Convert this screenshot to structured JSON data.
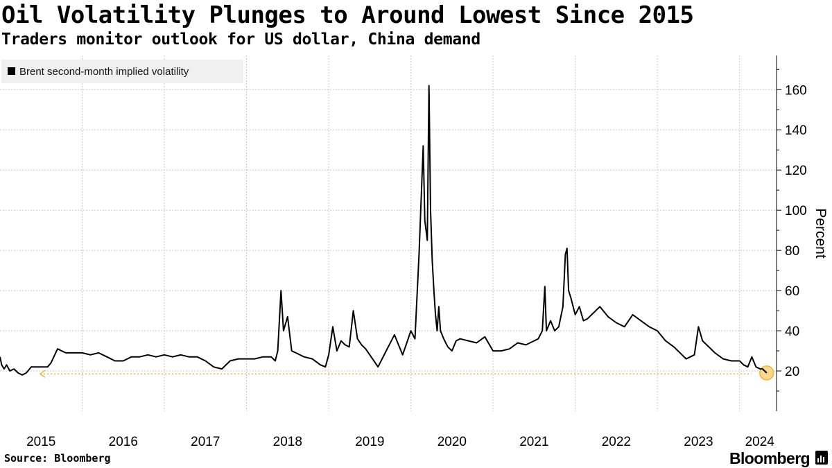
{
  "header": {
    "title": "Oil Volatility Plunges to Around Lowest Since 2015",
    "subtitle": "Traders monitor outlook for US dollar, China demand"
  },
  "footer": {
    "source": "Source: Bloomberg",
    "brand": "Bloomberg"
  },
  "colors": {
    "line": "#000000",
    "grid": "#c8c8c8",
    "highlight": "#f2b233",
    "highlight_fill": "#f9d98e",
    "legend_bg": "#f0f0f0"
  },
  "chart_data": {
    "type": "line",
    "title": "Oil Volatility Plunges to Around Lowest Since 2015",
    "subtitle": "Traders monitor outlook for US dollar, China demand",
    "ylabel": "Percent",
    "xlabel": "",
    "ylim": [
      0,
      177
    ],
    "xlim": [
      2015.0,
      2024.45
    ],
    "x_ticks": [
      2015,
      2016,
      2017,
      2018,
      2019,
      2020,
      2021,
      2022,
      2023,
      2024
    ],
    "x_tick_labels": [
      "2015",
      "2016",
      "2017",
      "2018",
      "2019",
      "2020",
      "2021",
      "2022",
      "2023",
      "2024"
    ],
    "y_ticks": [
      20,
      40,
      60,
      80,
      100,
      120,
      140,
      160
    ],
    "y_tick_labels": [
      "20",
      "40",
      "60",
      "80",
      "100",
      "120",
      "140",
      "160"
    ],
    "grid": true,
    "legend_position": "top-left",
    "series": [
      {
        "name": "Brent second-month implied volatility",
        "x": [
          2015.0,
          2015.02,
          2015.05,
          2015.08,
          2015.12,
          2015.17,
          2015.22,
          2015.27,
          2015.32,
          2015.38,
          2015.45,
          2015.52,
          2015.56,
          2015.58,
          2015.62,
          2015.7,
          2015.8,
          2015.9,
          2016.0,
          2016.1,
          2016.2,
          2016.3,
          2016.4,
          2016.5,
          2016.6,
          2016.7,
          2016.8,
          2016.9,
          2017.0,
          2017.1,
          2017.2,
          2017.3,
          2017.4,
          2017.5,
          2017.6,
          2017.7,
          2017.8,
          2017.9,
          2018.0,
          2018.1,
          2018.2,
          2018.3,
          2018.35,
          2018.38,
          2018.42,
          2018.45,
          2018.5,
          2018.55,
          2018.6,
          2018.7,
          2018.8,
          2018.9,
          2018.96,
          2019.0,
          2019.05,
          2019.1,
          2019.15,
          2019.2,
          2019.25,
          2019.3,
          2019.35,
          2019.4,
          2019.45,
          2019.55,
          2019.6,
          2019.7,
          2019.8,
          2019.9,
          2019.95,
          2020.0,
          2020.05,
          2020.1,
          2020.15,
          2020.17,
          2020.2,
          2020.22,
          2020.24,
          2020.26,
          2020.28,
          2020.3,
          2020.32,
          2020.34,
          2020.36,
          2020.4,
          2020.45,
          2020.5,
          2020.55,
          2020.6,
          2020.7,
          2020.8,
          2020.9,
          2021.0,
          2021.1,
          2021.2,
          2021.3,
          2021.4,
          2021.5,
          2021.55,
          2021.6,
          2021.63,
          2021.65,
          2021.7,
          2021.75,
          2021.8,
          2021.85,
          2021.88,
          2021.9,
          2021.92,
          2021.95,
          2022.0,
          2022.05,
          2022.1,
          2022.15,
          2022.2,
          2022.3,
          2022.4,
          2022.5,
          2022.6,
          2022.7,
          2022.8,
          2022.9,
          2023.0,
          2023.1,
          2023.2,
          2023.3,
          2023.35,
          2023.4,
          2023.45,
          2023.5,
          2023.55,
          2023.6,
          2023.7,
          2023.8,
          2023.9,
          2024.0,
          2024.05,
          2024.1,
          2024.15,
          2024.2,
          2024.25,
          2024.28,
          2024.33
        ],
        "values": [
          27,
          23,
          21,
          23,
          20,
          21,
          19,
          18,
          19,
          22,
          22,
          22,
          22,
          22,
          24,
          31,
          29,
          29,
          29,
          28,
          29,
          27,
          25,
          25,
          27,
          27,
          28,
          27,
          28,
          27,
          28,
          27,
          27,
          25,
          22,
          21,
          25,
          26,
          26,
          26,
          27,
          27,
          25,
          30,
          60,
          40,
          47,
          30,
          29,
          27,
          26,
          23,
          22,
          28,
          42,
          30,
          35,
          33,
          32,
          50,
          36,
          33,
          31,
          25,
          22,
          30,
          38,
          28,
          34,
          40,
          36,
          78,
          132,
          95,
          85,
          162,
          100,
          75,
          60,
          48,
          40,
          52,
          40,
          36,
          32,
          30,
          35,
          36,
          35,
          34,
          37,
          30,
          30,
          31,
          34,
          33,
          35,
          36,
          40,
          62,
          40,
          45,
          40,
          42,
          52,
          78,
          81,
          60,
          56,
          48,
          52,
          45,
          46,
          48,
          52,
          47,
          44,
          42,
          48,
          45,
          42,
          40,
          35,
          32,
          28,
          26,
          27,
          28,
          42,
          35,
          33,
          29,
          26,
          25,
          25,
          23,
          22,
          27,
          22,
          21,
          21,
          19
        ]
      }
    ],
    "annotations": [
      {
        "type": "reference_line",
        "y": 18.5,
        "from_x": 2015.0,
        "to_x": 2024.33,
        "style": "dotted",
        "arrow": "left"
      },
      {
        "type": "marker",
        "x": 2024.33,
        "y": 19
      }
    ]
  }
}
